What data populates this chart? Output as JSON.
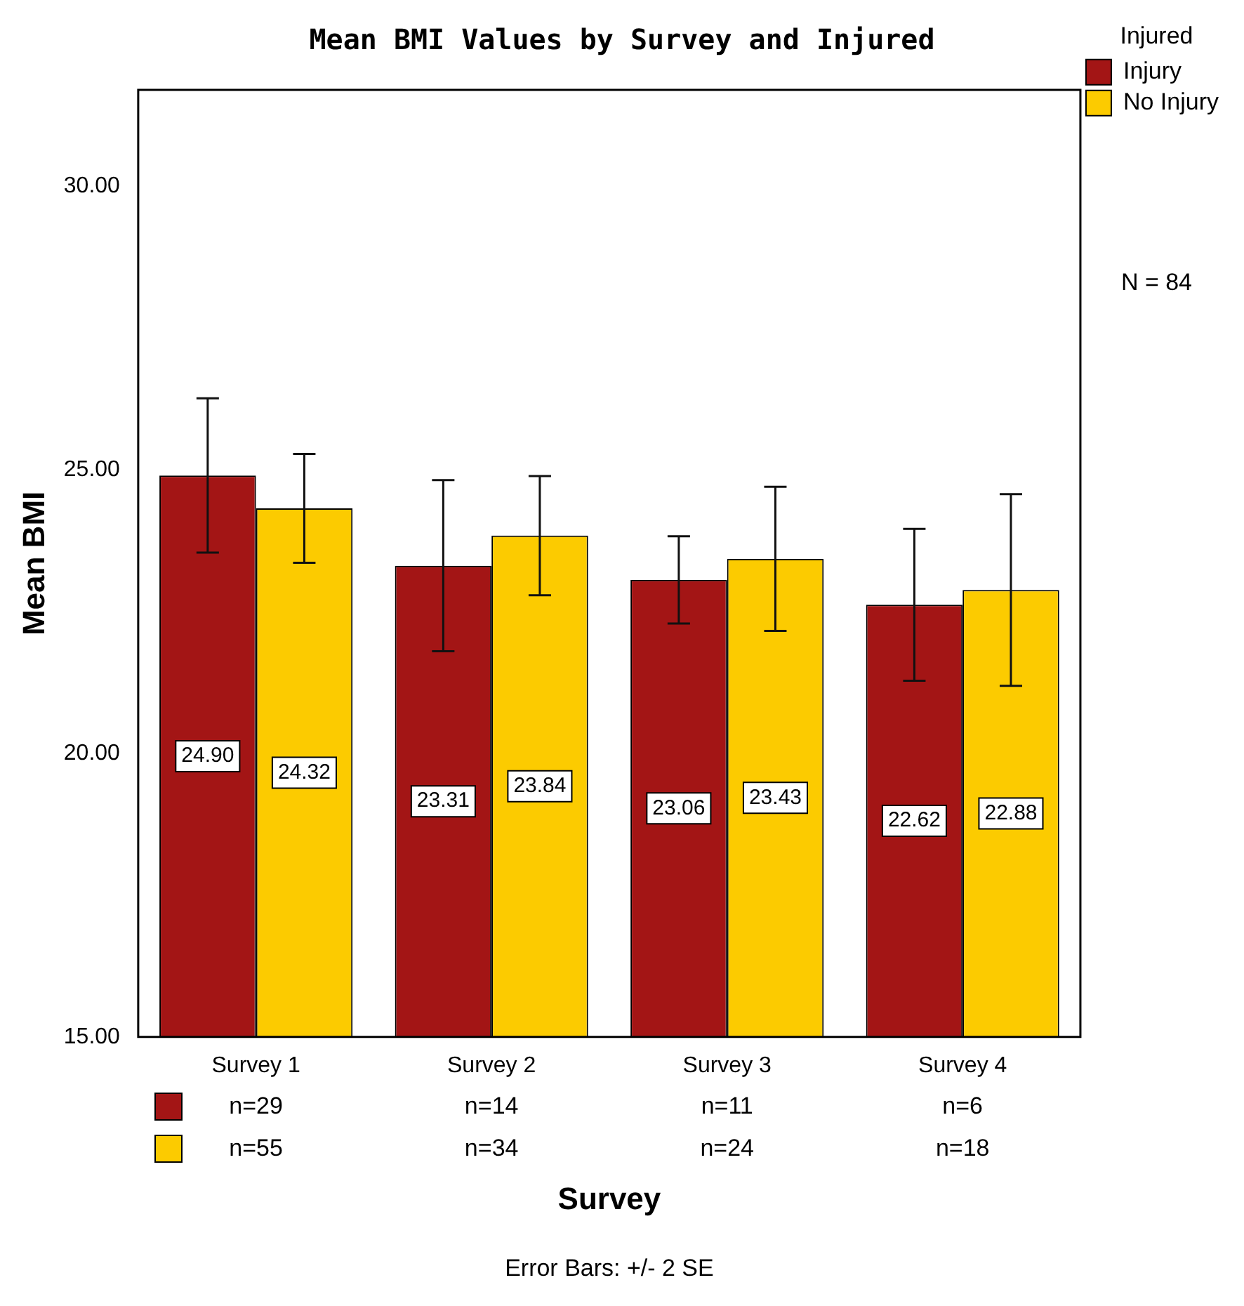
{
  "chart_data": {
    "type": "bar",
    "title": "Mean BMI Values by Survey and Injured",
    "xlabel": "Survey",
    "ylabel": "Mean BMI",
    "legend_title": "Injured",
    "categories": [
      "Survey 1",
      "Survey 2",
      "Survey 3",
      "Survey 4"
    ],
    "series": [
      {
        "name": "Injury",
        "color": "#a31515",
        "values": [
          24.9,
          23.31,
          23.06,
          22.62
        ],
        "errors": [
          1.36,
          1.51,
          0.77,
          1.34
        ],
        "value_labels": [
          "24.90",
          "23.31",
          "23.06",
          "22.62"
        ]
      },
      {
        "name": "No Injury",
        "color": "#fccb00",
        "values": [
          24.32,
          23.84,
          23.43,
          22.88
        ],
        "errors": [
          0.96,
          1.05,
          1.27,
          1.69
        ],
        "value_labels": [
          "24.32",
          "23.84",
          "23.43",
          "22.88"
        ]
      }
    ],
    "ylim": [
      15,
      31.7
    ],
    "yticks": [
      {
        "value": 15,
        "label": "15.00"
      },
      {
        "value": 20,
        "label": "20.00"
      },
      {
        "value": 25,
        "label": "25.00"
      },
      {
        "value": 30,
        "label": "30.00"
      }
    ],
    "grid": false,
    "legend": "top right",
    "annotations": [
      "N = 84",
      {
        "text": "n=29",
        "x": "Survey 1"
      },
      {
        "text": "n=14",
        "x": "Survey 2"
      },
      {
        "text": "n=11",
        "x": "Survey 3"
      },
      {
        "text": "n=6",
        "x": "Survey 4"
      },
      {
        "text": "n=55",
        "x": "Survey 1"
      },
      {
        "text": "n=34",
        "x": "Survey 2"
      },
      {
        "text": "n=24",
        "x": "Survey 3"
      },
      {
        "text": "n=18",
        "x": "Survey 4"
      },
      "Error Bars: +/- 2 SE"
    ]
  }
}
